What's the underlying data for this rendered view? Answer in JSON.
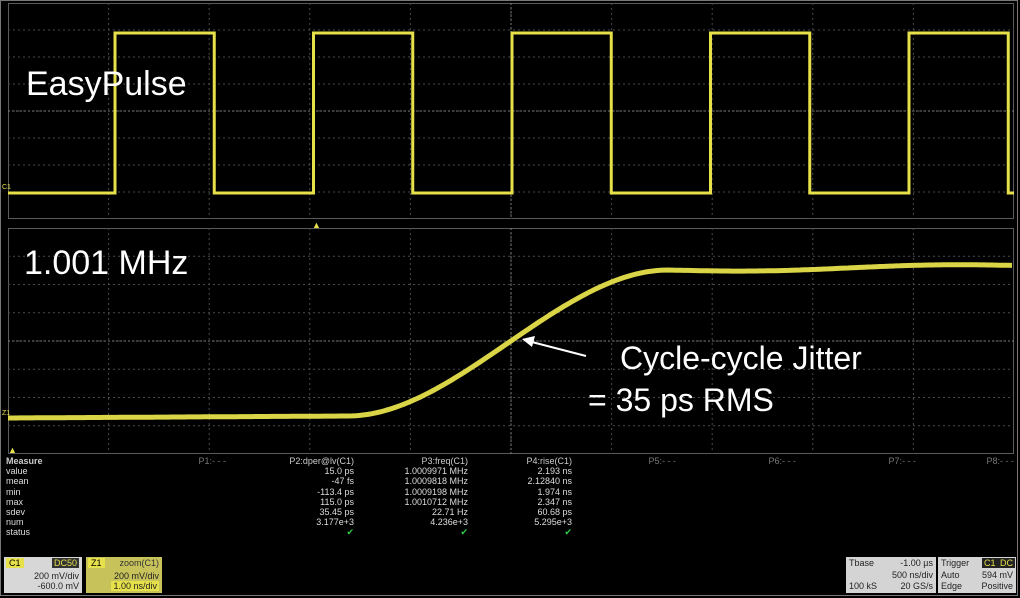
{
  "upper_panel": {
    "label": "EasyPulse",
    "channel_marker": "C1",
    "trace_color": "#e6e04a"
  },
  "lower_panel": {
    "label": "1.001 MHz",
    "annotation_line1": "Cycle-cycle Jitter",
    "annotation_line2": "= 35 ps RMS",
    "channel_marker": "Z1"
  },
  "measure": {
    "title": "Measure",
    "row_labels": [
      "value",
      "mean",
      "min",
      "max",
      "sdev",
      "num",
      "status"
    ],
    "params": [
      {
        "header": "P1:- - -",
        "active": false,
        "values": []
      },
      {
        "header": "P2:dper@lv(C1)",
        "active": true,
        "values": [
          "15.0 ps",
          "-47 fs",
          "-113.4 ps",
          "115.0 ps",
          "35.45 ps",
          "3.177e+3"
        ]
      },
      {
        "header": "P3:freq(C1)",
        "active": true,
        "values": [
          "1.0009971 MHz",
          "1.0009818 MHz",
          "1.0009198 MHz",
          "1.0010712 MHz",
          "22.71 Hz",
          "4.236e+3"
        ]
      },
      {
        "header": "P4:rise(C1)",
        "active": true,
        "values": [
          "2.193 ns",
          "2.12840 ns",
          "1.974 ns",
          "2.347 ns",
          "60.68 ps",
          "5.295e+3"
        ]
      },
      {
        "header": "P5:- - -",
        "active": false,
        "values": []
      },
      {
        "header": "P6:- - -",
        "active": false,
        "values": []
      },
      {
        "header": "P7:- - -",
        "active": false,
        "values": []
      },
      {
        "header": "P8:- - -",
        "active": false,
        "values": []
      }
    ],
    "status_icon": "checkmark-icon"
  },
  "c1_box": {
    "tag": "C1",
    "coupling": "DC50",
    "vdiv": "200 mV/div",
    "offset": "-600.0 mV"
  },
  "z1_box": {
    "tag": "Z1",
    "source": "zoom(C1)",
    "vdiv": "200 mV/div",
    "tdiv": "1.00 ns/div"
  },
  "timebase": {
    "label": "Tbase",
    "delay": "-1.00 µs",
    "tdiv": "500 ns/div",
    "samples": "100 kS",
    "rate": "20 GS/s"
  },
  "trigger": {
    "label": "Trigger",
    "source": "C1",
    "coupling": "DC",
    "mode": "Auto",
    "level": "594 mV",
    "type": "Edge",
    "slope": "Positive"
  }
}
